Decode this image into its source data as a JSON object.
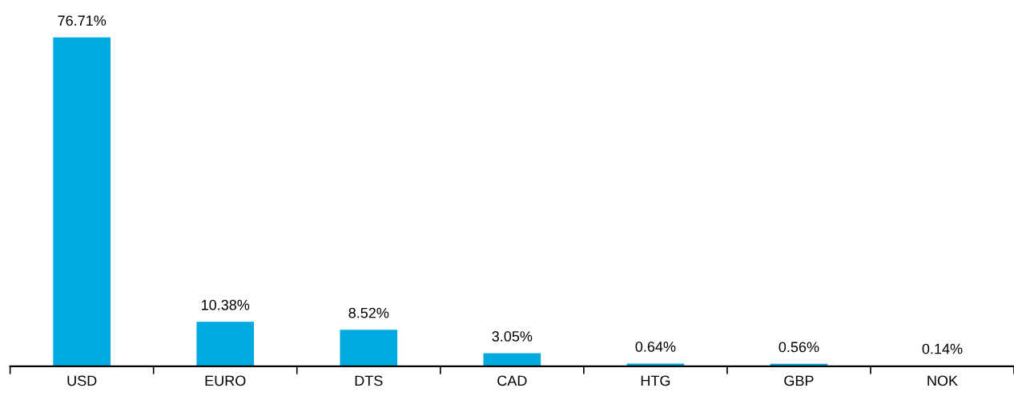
{
  "chart_data": {
    "type": "bar",
    "categories": [
      "USD",
      "EURO",
      "DTS",
      "CAD",
      "HTG",
      "GBP",
      "NOK"
    ],
    "values": [
      76.71,
      10.38,
      8.52,
      3.05,
      0.64,
      0.56,
      0.14
    ],
    "value_labels": [
      "76.71%",
      "10.38%",
      "8.52%",
      "3.05%",
      "0.64%",
      "0.56%",
      "0.14%"
    ],
    "color": "#00aae0",
    "grid": false,
    "legend": false
  }
}
